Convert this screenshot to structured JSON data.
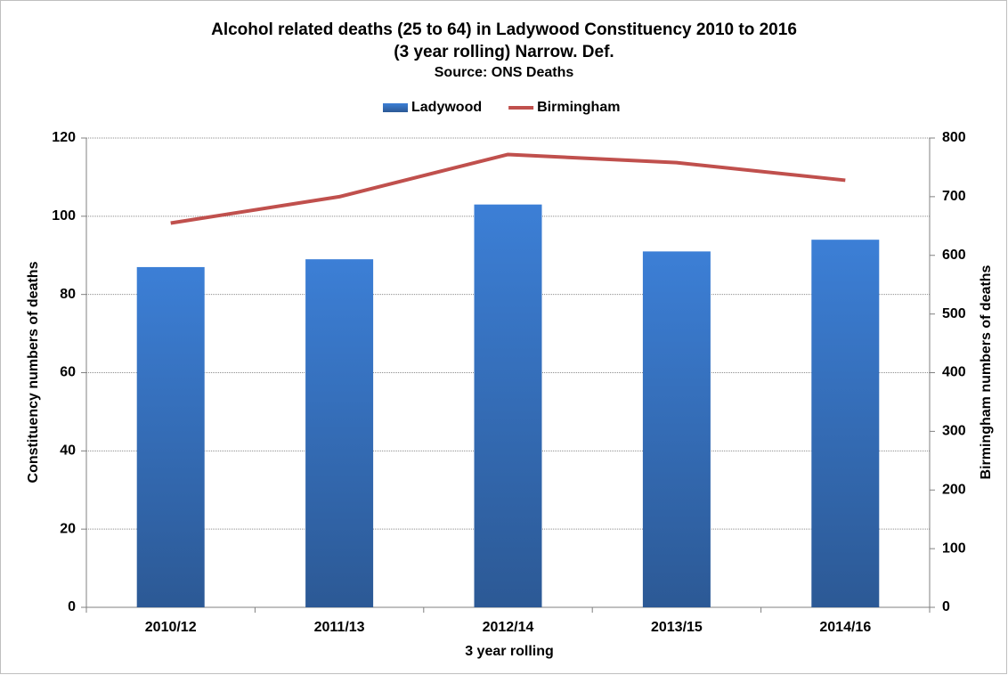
{
  "chart_data": {
    "type": "bar",
    "title": [
      "Alcohol related deaths (25 to 64) in Ladywood Constituency 2010 to 2016",
      "(3 year rolling) Narrow. Def."
    ],
    "subtitle": "Source: ONS Deaths",
    "x_label": "3 year rolling",
    "y_label": "Constituency numbers of deaths",
    "y2_label": "Birmingham numbers of deaths",
    "categories": [
      "2010/12",
      "2011/13",
      "2012/14",
      "2013/15",
      "2014/16"
    ],
    "series": [
      {
        "name": "Ladywood",
        "type": "bar",
        "color": "#3a78c8",
        "values": [
          87,
          89,
          103,
          91,
          94
        ]
      },
      {
        "name": "Birmingham",
        "type": "line",
        "axis": "y2",
        "color": "#c0504d",
        "values": [
          655,
          700,
          772,
          758,
          728
        ]
      }
    ],
    "ylim": [
      0,
      120
    ],
    "yticks": [
      0,
      20,
      40,
      60,
      80,
      100,
      120
    ],
    "y2lim": [
      0,
      800
    ],
    "y2ticks": [
      0,
      100,
      200,
      300,
      400,
      500,
      600,
      700,
      800
    ],
    "grid": true,
    "legend": "top"
  }
}
